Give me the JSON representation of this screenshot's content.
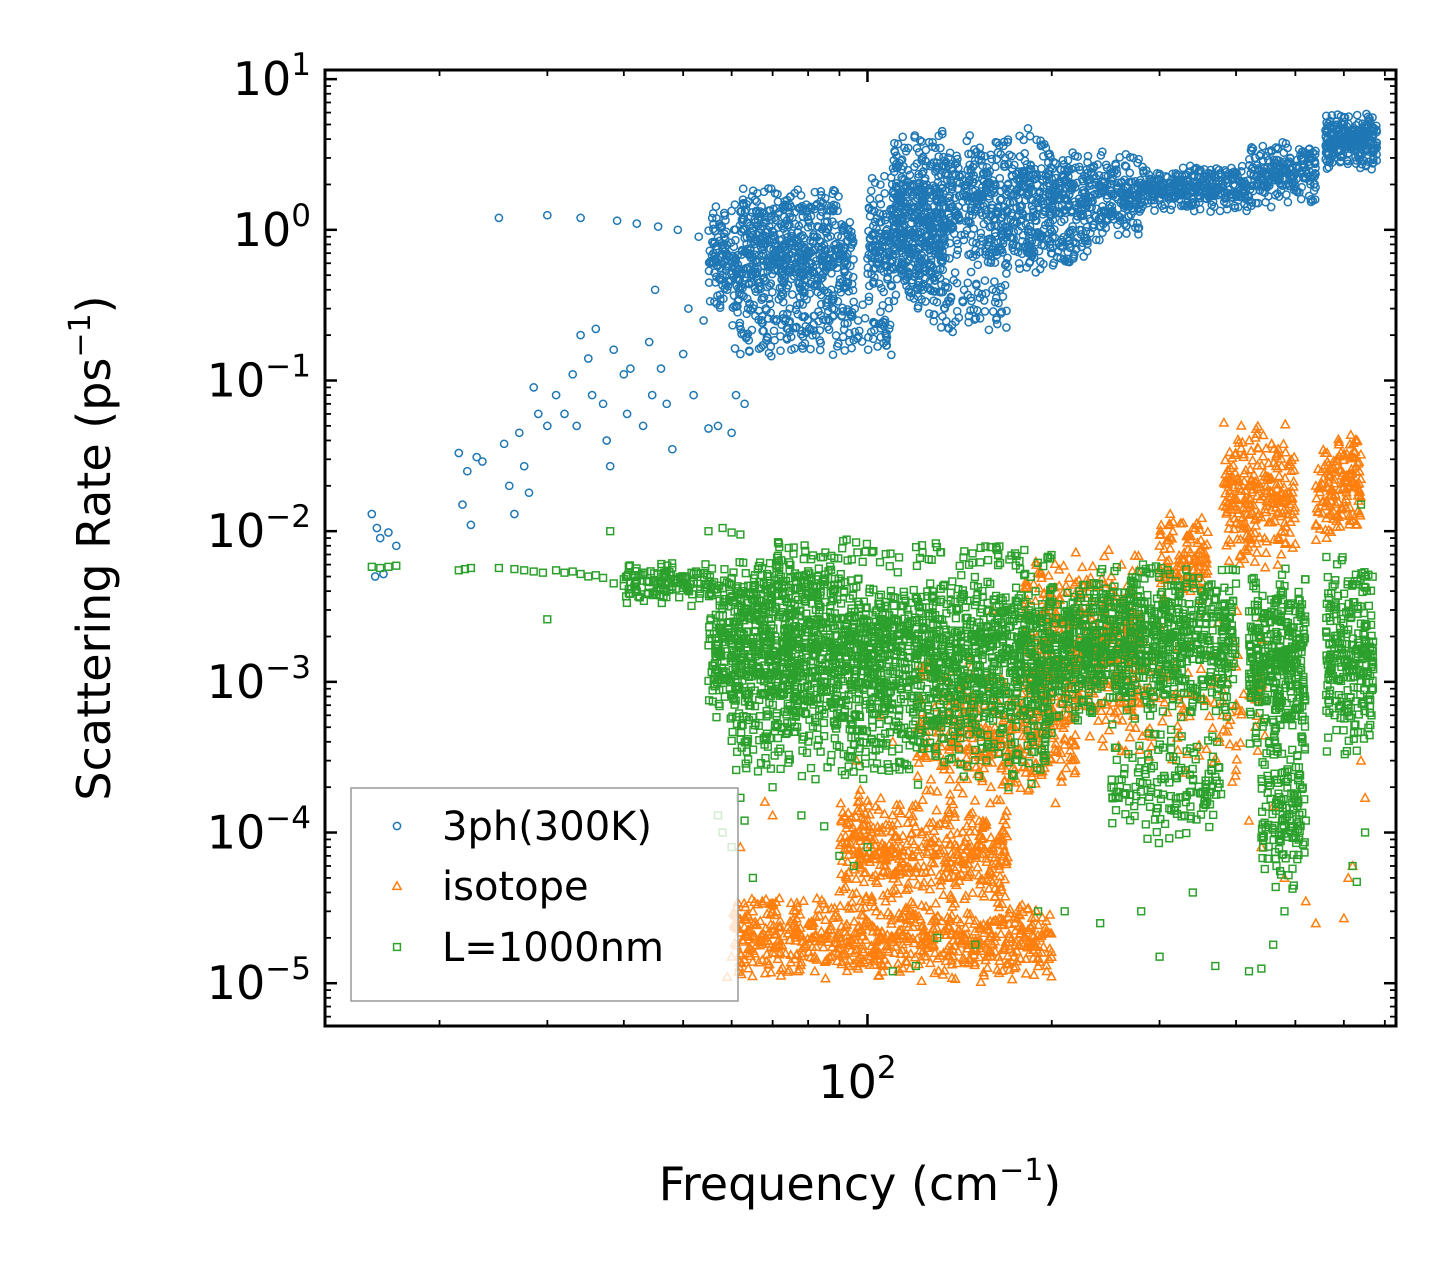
{
  "chart_data": {
    "type": "scatter",
    "title": "",
    "xlabel": {
      "text": "Frequency (cm",
      "sup": "−1",
      "close": ")"
    },
    "ylabel": {
      "text": "Scattering Rate (ps",
      "sup": "−1",
      "close": ")"
    },
    "xscale": "log",
    "yscale": "log",
    "xlim": [
      13,
      730
    ],
    "ylim": [
      5.2e-06,
      11.5
    ],
    "x_ticks": [
      {
        "value": 100,
        "base": "10",
        "exp": "2"
      }
    ],
    "y_ticks": [
      {
        "value": 10,
        "base": "10",
        "exp": "1"
      },
      {
        "value": 1,
        "base": "10",
        "exp": "0"
      },
      {
        "value": 0.1,
        "base": "10",
        "exp": "−1"
      },
      {
        "value": 0.01,
        "base": "10",
        "exp": "−2"
      },
      {
        "value": 0.001,
        "base": "10",
        "exp": "−3"
      },
      {
        "value": 0.0001,
        "base": "10",
        "exp": "−4"
      },
      {
        "value": 1e-05,
        "base": "10",
        "exp": "−5"
      }
    ],
    "legend_position": "lower-left",
    "series": [
      {
        "name": "3ph(300K)",
        "marker": "circle",
        "color": "#1f77b4",
        "points": [
          [
            15.5,
            0.013
          ],
          [
            15.8,
            0.0105
          ],
          [
            16.0,
            0.009
          ],
          [
            16.5,
            0.0098
          ],
          [
            17.0,
            0.008
          ],
          [
            15.7,
            0.005
          ],
          [
            16.2,
            0.0052
          ],
          [
            21.5,
            0.033
          ],
          [
            21.8,
            0.015
          ],
          [
            22.2,
            0.025
          ],
          [
            22.5,
            0.011
          ],
          [
            23.0,
            0.031
          ],
          [
            23.5,
            0.029
          ],
          [
            25.0,
            1.2
          ],
          [
            25.5,
            0.038
          ],
          [
            26.0,
            0.02
          ],
          [
            26.5,
            0.013
          ],
          [
            27.0,
            0.045
          ],
          [
            27.5,
            0.027
          ],
          [
            28.0,
            0.018
          ],
          [
            28.5,
            0.09
          ],
          [
            29.0,
            0.06
          ],
          [
            30.0,
            1.25
          ],
          [
            30.0,
            0.05
          ],
          [
            31.0,
            0.08
          ],
          [
            32.0,
            0.06
          ],
          [
            33.0,
            0.11
          ],
          [
            33.5,
            0.05
          ],
          [
            34.0,
            0.2
          ],
          [
            34.0,
            1.2
          ],
          [
            35.0,
            0.14
          ],
          [
            35.5,
            0.08
          ],
          [
            36.0,
            0.22
          ],
          [
            37.0,
            0.07
          ],
          [
            37.5,
            0.04
          ],
          [
            38.0,
            0.027
          ],
          [
            38.5,
            0.16
          ],
          [
            39.0,
            1.15
          ],
          [
            40.0,
            0.11
          ],
          [
            40.5,
            0.06
          ],
          [
            41.0,
            0.12
          ],
          [
            42.0,
            1.1
          ],
          [
            43.0,
            0.05
          ],
          [
            44.0,
            0.18
          ],
          [
            44.5,
            0.08
          ],
          [
            45.0,
            0.4
          ],
          [
            45.5,
            1.05
          ],
          [
            46.0,
            0.12
          ],
          [
            47.0,
            0.07
          ],
          [
            48.0,
            0.035
          ],
          [
            49.0,
            1.0
          ],
          [
            50.0,
            0.15
          ],
          [
            51.0,
            0.3
          ],
          [
            52.0,
            0.08
          ],
          [
            53.0,
            0.9
          ],
          [
            54.0,
            0.25
          ],
          [
            55.0,
            0.048
          ],
          [
            56.0,
            0.6
          ],
          [
            57.0,
            0.05
          ],
          [
            58.0,
            0.5
          ],
          [
            59.0,
            0.4
          ],
          [
            60.0,
            0.045
          ],
          [
            61.0,
            0.08
          ],
          [
            62.0,
            0.15
          ],
          [
            63.0,
            0.07
          ]
        ],
        "clouds": [
          {
            "x": [
              55,
              95
            ],
            "y": [
              0.25,
              1.6
            ],
            "n": 650
          },
          {
            "x": [
              60,
              110
            ],
            "y": [
              0.14,
              0.35
            ],
            "n": 160
          },
          {
            "x": [
              62,
              90
            ],
            "y": [
              1.0,
              2.0
            ],
            "n": 90
          },
          {
            "x": [
              100,
              135
            ],
            "y": [
              0.3,
              2.5
            ],
            "n": 400
          },
          {
            "x": [
              110,
              200
            ],
            "y": [
              0.6,
              4.8
            ],
            "n": 650
          },
          {
            "x": [
              120,
              170
            ],
            "y": [
              0.2,
              0.6
            ],
            "n": 90
          },
          {
            "x": [
              150,
              230
            ],
            "y": [
              0.5,
              1.2
            ],
            "n": 140
          },
          {
            "x": [
              200,
              280
            ],
            "y": [
              0.8,
              3.5
            ],
            "n": 350
          },
          {
            "x": [
              280,
              420
            ],
            "y": [
              1.3,
              2.8
            ],
            "n": 350
          },
          {
            "x": [
              420,
              540
            ],
            "y": [
              1.4,
              4.0
            ],
            "n": 220
          },
          {
            "x": [
              560,
              680
            ],
            "y": [
              2.5,
              6.0
            ],
            "n": 280
          }
        ]
      },
      {
        "name": "isotope",
        "marker": "triangle",
        "color": "#ff7f0e",
        "points": [
          [
            59,
            1.1e-05
          ],
          [
            60,
            1.5e-05
          ],
          [
            62,
            8e-05
          ],
          [
            65,
            3e-05
          ],
          [
            68,
            0.00016
          ],
          [
            70,
            0.00013
          ],
          [
            76,
            2.5e-05
          ],
          [
            96,
            0.0003
          ],
          [
            105,
            0.0006
          ],
          [
            110,
            0.0004
          ],
          [
            160,
            0.003
          ],
          [
            170,
            0.0004
          ],
          [
            180,
            0.0005
          ],
          [
            210,
            0.0018
          ],
          [
            230,
            0.003
          ],
          [
            260,
            0.006
          ],
          [
            300,
            0.008
          ],
          [
            360,
            0.0015
          ],
          [
            380,
            0.0006
          ],
          [
            400,
            0.00026
          ],
          [
            420,
            0.00012
          ],
          [
            440,
            8e-05
          ],
          [
            460,
            0.00015
          ],
          [
            480,
            5e-05
          ],
          [
            520,
            3.5e-05
          ],
          [
            540,
            2.5e-05
          ],
          [
            600,
            2.7e-05
          ],
          [
            610,
            5e-05
          ],
          [
            620,
            6e-05
          ],
          [
            640,
            0.0003
          ],
          [
            650,
            0.00017
          ]
        ],
        "clouds": [
          {
            "x": [
              60,
              200
            ],
            "y": [
              1e-05,
              4e-05
            ],
            "n": 700
          },
          {
            "x": [
              90,
              170
            ],
            "y": [
              3e-05,
              0.0002
            ],
            "n": 450
          },
          {
            "x": [
              120,
              220
            ],
            "y": [
              0.00015,
              0.0015
            ],
            "n": 400
          },
          {
            "x": [
              180,
              280
            ],
            "y": [
              0.0005,
              0.008
            ],
            "n": 380
          },
          {
            "x": [
              300,
              360
            ],
            "y": [
              0.003,
              0.015
            ],
            "n": 120
          },
          {
            "x": [
              380,
              500
            ],
            "y": [
              0.005,
              0.06
            ],
            "n": 260
          },
          {
            "x": [
              540,
              640
            ],
            "y": [
              0.008,
              0.05
            ],
            "n": 160
          },
          {
            "x": [
              230,
              450
            ],
            "y": [
              0.0002,
              0.003
            ],
            "n": 160
          }
        ]
      },
      {
        "name": "L=1000nm",
        "marker": "square",
        "color": "#2ca02c",
        "points": [
          [
            15.5,
            0.0058
          ],
          [
            16.0,
            0.0057
          ],
          [
            16.5,
            0.0058
          ],
          [
            17.0,
            0.0059
          ],
          [
            21.5,
            0.0055
          ],
          [
            22.0,
            0.0056
          ],
          [
            22.5,
            0.0057
          ],
          [
            25.0,
            0.0057
          ],
          [
            26.5,
            0.0056
          ],
          [
            27.5,
            0.0055
          ],
          [
            28.5,
            0.0054
          ],
          [
            29.5,
            0.0053
          ],
          [
            30.0,
            0.0026
          ],
          [
            31.0,
            0.0055
          ],
          [
            32.0,
            0.0053
          ],
          [
            33.0,
            0.0054
          ],
          [
            34.0,
            0.0052
          ],
          [
            35.0,
            0.005
          ],
          [
            36.0,
            0.0051
          ],
          [
            37.0,
            0.0049
          ],
          [
            38.0,
            0.01
          ],
          [
            38.5,
            0.0045
          ],
          [
            40.0,
            0.0048
          ],
          [
            42.0,
            0.0047
          ],
          [
            44.0,
            0.0046
          ],
          [
            46.0,
            0.0045
          ],
          [
            48.0,
            0.0043
          ],
          [
            50.0,
            0.0042
          ],
          [
            52.0,
            0.0046
          ],
          [
            55.0,
            0.01
          ],
          [
            58.0,
            0.0105
          ],
          [
            60.0,
            0.0098
          ],
          [
            62.0,
            0.0095
          ],
          [
            57.0,
            0.00013
          ],
          [
            58.0,
            0.0001
          ],
          [
            60.0,
            8e-05
          ],
          [
            62.0,
            0.00017
          ],
          [
            63.0,
            0.00012
          ],
          [
            65.0,
            5e-05
          ],
          [
            70.0,
            0.0002
          ],
          [
            78.0,
            0.00013
          ],
          [
            85.0,
            0.00011
          ],
          [
            90.0,
            7e-05
          ],
          [
            95.0,
            6e-05
          ],
          [
            100.0,
            8e-05
          ],
          [
            110.0,
            1.2e-05
          ],
          [
            120.0,
            1.3e-05
          ],
          [
            130.0,
            2e-05
          ],
          [
            150.0,
            1.8e-05
          ],
          [
            170.0,
            0.0002
          ],
          [
            190.0,
            3e-05
          ],
          [
            210.0,
            3e-05
          ],
          [
            240.0,
            2.5e-05
          ],
          [
            280.0,
            3e-05
          ],
          [
            300.0,
            1.5e-05
          ],
          [
            340.0,
            4e-05
          ],
          [
            370.0,
            1.3e-05
          ],
          [
            420.0,
            1.2e-05
          ],
          [
            440.0,
            1.25e-05
          ],
          [
            460.0,
            1.8e-05
          ],
          [
            480.0,
            3e-05
          ],
          [
            520.0,
            0.00012
          ],
          [
            620.0,
            6e-05
          ],
          [
            630.0,
            4.7e-05
          ],
          [
            640.0,
            0.015
          ],
          [
            650.0,
            0.0001
          ]
        ],
        "clouds": [
          {
            "x": [
              40,
              90
            ],
            "y": [
              0.003,
              0.0065
            ],
            "n": 250
          },
          {
            "x": [
              55,
              240
            ],
            "y": [
              0.0005,
              0.0055
            ],
            "n": 2000
          },
          {
            "x": [
              60,
              200
            ],
            "y": [
              0.0002,
              0.0012
            ],
            "n": 450
          },
          {
            "x": [
              70,
              200
            ],
            "y": [
              0.005,
              0.009
            ],
            "n": 90
          },
          {
            "x": [
              240,
              400
            ],
            "y": [
              0.0005,
              0.007
            ],
            "n": 650
          },
          {
            "x": [
              250,
              380
            ],
            "y": [
              8e-05,
              0.0006
            ],
            "n": 160
          },
          {
            "x": [
              420,
              520
            ],
            "y": [
              0.0003,
              0.006
            ],
            "n": 380
          },
          {
            "x": [
              440,
              520
            ],
            "y": [
              4e-05,
              0.0004
            ],
            "n": 140
          },
          {
            "x": [
              560,
              670
            ],
            "y": [
              0.0003,
              0.008
            ],
            "n": 260
          }
        ]
      }
    ]
  }
}
